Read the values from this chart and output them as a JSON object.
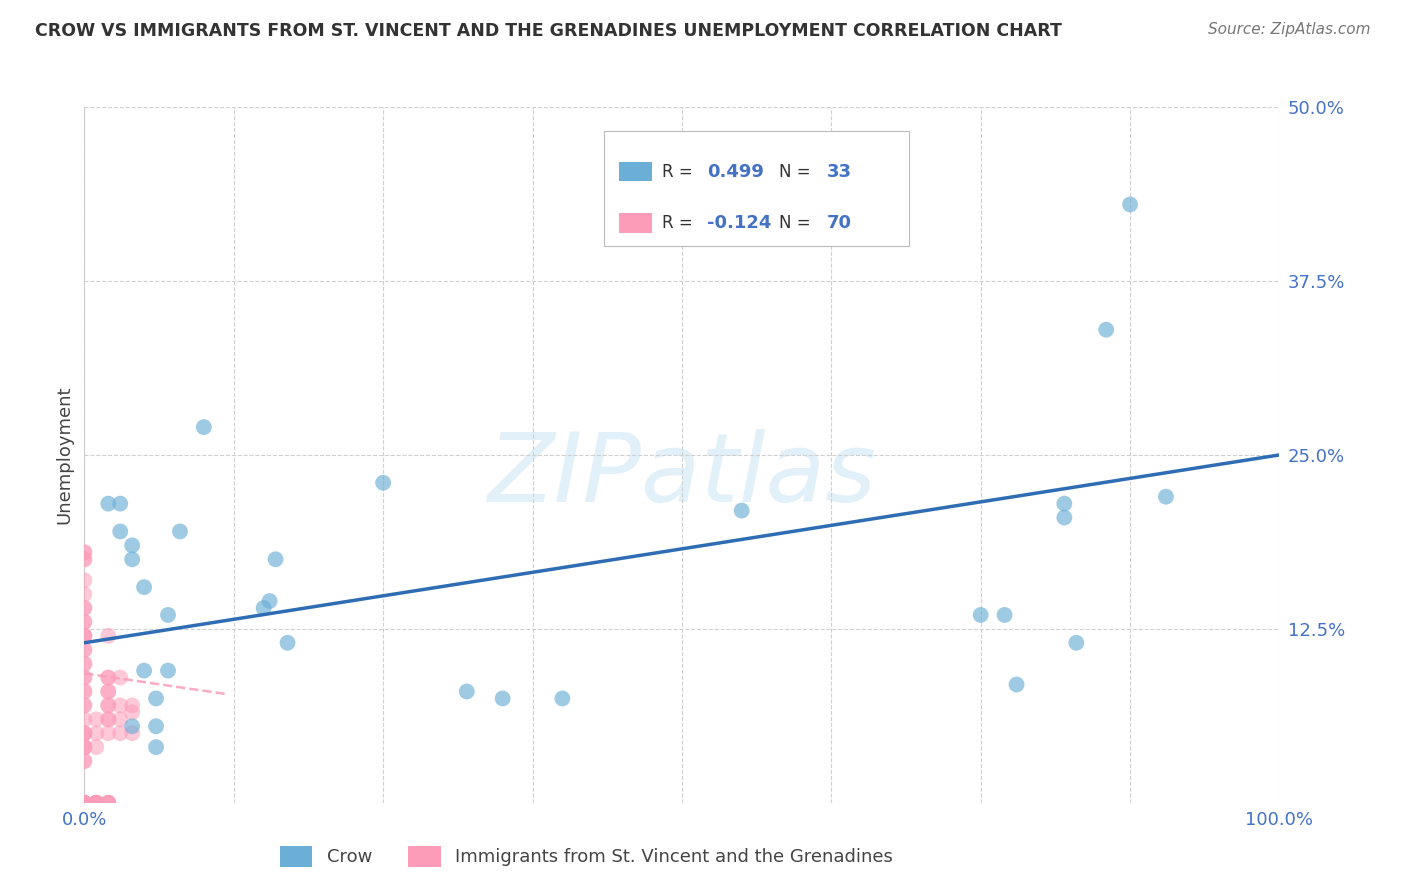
{
  "title": "CROW VS IMMIGRANTS FROM ST. VINCENT AND THE GRENADINES UNEMPLOYMENT CORRELATION CHART",
  "source": "Source: ZipAtlas.com",
  "ylabel": "Unemployment",
  "xlim": [
    0.0,
    1.0
  ],
  "ylim": [
    0.0,
    0.5
  ],
  "xticks": [
    0.0,
    0.125,
    0.25,
    0.375,
    0.5,
    0.625,
    0.75,
    0.875,
    1.0
  ],
  "xticklabels": [
    "0.0%",
    "",
    "",
    "",
    "",
    "",
    "",
    "",
    "100.0%"
  ],
  "yticks": [
    0.0,
    0.125,
    0.25,
    0.375,
    0.5
  ],
  "yticklabels": [
    "",
    "12.5%",
    "25.0%",
    "37.5%",
    "50.0%"
  ],
  "crow_color": "#6baed6",
  "immigrant_color": "#fc9cb9",
  "crow_scatter_x": [
    0.02,
    0.03,
    0.03,
    0.04,
    0.04,
    0.04,
    0.05,
    0.05,
    0.06,
    0.06,
    0.06,
    0.07,
    0.07,
    0.08,
    0.1,
    0.15,
    0.155,
    0.16,
    0.17,
    0.25,
    0.32,
    0.35,
    0.4,
    0.55,
    0.75,
    0.77,
    0.78,
    0.82,
    0.82,
    0.83,
    0.855,
    0.875,
    0.905
  ],
  "crow_scatter_y": [
    0.215,
    0.195,
    0.215,
    0.185,
    0.175,
    0.055,
    0.155,
    0.095,
    0.055,
    0.075,
    0.04,
    0.135,
    0.095,
    0.195,
    0.27,
    0.14,
    0.145,
    0.175,
    0.115,
    0.23,
    0.08,
    0.075,
    0.075,
    0.21,
    0.135,
    0.135,
    0.085,
    0.205,
    0.215,
    0.115,
    0.34,
    0.43,
    0.22
  ],
  "immigrant_scatter_x": [
    0.0,
    0.0,
    0.0,
    0.0,
    0.0,
    0.0,
    0.0,
    0.0,
    0.0,
    0.0,
    0.0,
    0.0,
    0.0,
    0.0,
    0.0,
    0.0,
    0.0,
    0.0,
    0.0,
    0.0,
    0.0,
    0.0,
    0.0,
    0.0,
    0.0,
    0.0,
    0.0,
    0.0,
    0.0,
    0.0,
    0.0,
    0.0,
    0.0,
    0.0,
    0.0,
    0.0,
    0.0,
    0.0,
    0.0,
    0.0,
    0.01,
    0.01,
    0.01,
    0.01,
    0.01,
    0.01,
    0.01,
    0.01,
    0.01,
    0.02,
    0.02,
    0.02,
    0.02,
    0.02,
    0.02,
    0.02,
    0.02,
    0.02,
    0.02,
    0.02,
    0.02,
    0.02,
    0.02,
    0.03,
    0.03,
    0.03,
    0.03,
    0.04,
    0.04,
    0.04
  ],
  "immigrant_scatter_y": [
    0.0,
    0.0,
    0.0,
    0.0,
    0.0,
    0.0,
    0.0,
    0.0,
    0.03,
    0.03,
    0.04,
    0.04,
    0.04,
    0.05,
    0.05,
    0.05,
    0.06,
    0.07,
    0.07,
    0.08,
    0.08,
    0.09,
    0.09,
    0.1,
    0.1,
    0.11,
    0.11,
    0.12,
    0.12,
    0.12,
    0.13,
    0.13,
    0.14,
    0.14,
    0.15,
    0.16,
    0.175,
    0.175,
    0.18,
    0.18,
    0.0,
    0.0,
    0.0,
    0.0,
    0.0,
    0.0,
    0.04,
    0.05,
    0.06,
    0.0,
    0.0,
    0.0,
    0.0,
    0.05,
    0.06,
    0.06,
    0.07,
    0.07,
    0.08,
    0.08,
    0.09,
    0.09,
    0.12,
    0.05,
    0.06,
    0.07,
    0.09,
    0.05,
    0.065,
    0.07
  ],
  "crow_trendline_x": [
    0.0,
    1.0
  ],
  "crow_trendline_y": [
    0.115,
    0.25
  ],
  "immigrant_trendline_x": [
    0.0,
    0.12
  ],
  "immigrant_trendline_y": [
    0.093,
    0.078
  ],
  "watermark": "ZIPatlas",
  "background_color": "#ffffff",
  "grid_color": "#d0d0d0"
}
